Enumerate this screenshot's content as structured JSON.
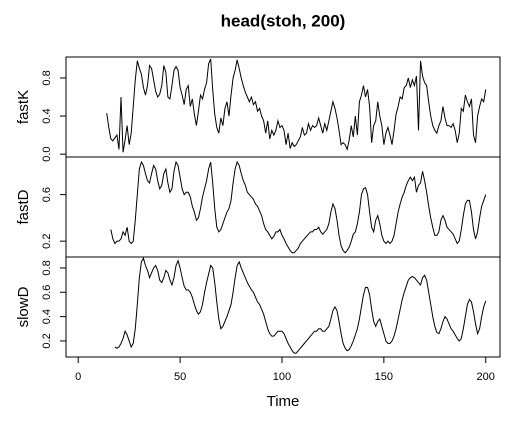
{
  "chart_data": {
    "type": "line",
    "title": "head(stoh, 200)",
    "xlabel": "Time",
    "color": "#000000",
    "x": [
      1,
      2,
      3,
      4,
      5,
      6,
      7,
      8,
      9,
      10,
      11,
      12,
      13,
      14,
      15,
      16,
      17,
      18,
      19,
      20,
      21,
      22,
      23,
      24,
      25,
      26,
      27,
      28,
      29,
      30,
      31,
      32,
      33,
      34,
      35,
      36,
      37,
      38,
      39,
      40,
      41,
      42,
      43,
      44,
      45,
      46,
      47,
      48,
      49,
      50,
      51,
      52,
      53,
      54,
      55,
      56,
      57,
      58,
      59,
      60,
      61,
      62,
      63,
      64,
      65,
      66,
      67,
      68,
      69,
      70,
      71,
      72,
      73,
      74,
      75,
      76,
      77,
      78,
      79,
      80,
      81,
      82,
      83,
      84,
      85,
      86,
      87,
      88,
      89,
      90,
      91,
      92,
      93,
      94,
      95,
      96,
      97,
      98,
      99,
      100,
      101,
      102,
      103,
      104,
      105,
      106,
      107,
      108,
      109,
      110,
      111,
      112,
      113,
      114,
      115,
      116,
      117,
      118,
      119,
      120,
      121,
      122,
      123,
      124,
      125,
      126,
      127,
      128,
      129,
      130,
      131,
      132,
      133,
      134,
      135,
      136,
      137,
      138,
      139,
      140,
      141,
      142,
      143,
      144,
      145,
      146,
      147,
      148,
      149,
      150,
      151,
      152,
      153,
      154,
      155,
      156,
      157,
      158,
      159,
      160,
      161,
      162,
      163,
      164,
      165,
      166,
      167,
      168,
      169,
      170,
      171,
      172,
      173,
      174,
      175,
      176,
      177,
      178,
      179,
      180,
      181,
      182,
      183,
      184,
      185,
      186,
      187,
      188,
      189,
      190,
      191,
      192,
      193,
      194,
      195,
      196,
      197,
      198,
      199,
      200
    ],
    "xlim": [
      -6,
      207
    ],
    "xticks": [
      0,
      50,
      100,
      150,
      200
    ],
    "series": [
      {
        "name": "fastK",
        "ylim": [
          -0.03,
          1.02
        ],
        "yticks": [
          {
            "value": 0,
            "label": "0.0"
          },
          0.4,
          0.8
        ],
        "values": [
          null,
          null,
          null,
          null,
          null,
          null,
          null,
          null,
          null,
          null,
          null,
          null,
          null,
          0.43,
          0.28,
          0.16,
          0.14,
          0.17,
          0.2,
          0.05,
          0.6,
          0.02,
          0.15,
          0.3,
          0.1,
          0.22,
          0.5,
          0.78,
          0.98,
          0.9,
          0.84,
          0.7,
          0.62,
          0.72,
          0.93,
          0.9,
          0.78,
          0.66,
          0.6,
          0.63,
          0.72,
          0.93,
          0.86,
          0.6,
          0.58,
          0.72,
          0.88,
          0.92,
          0.88,
          0.7,
          0.62,
          0.52,
          0.68,
          0.72,
          0.5,
          0.58,
          0.42,
          0.3,
          0.45,
          0.62,
          0.58,
          0.68,
          0.75,
          0.95,
          1.0,
          0.68,
          0.42,
          0.28,
          0.22,
          0.38,
          0.3,
          0.48,
          0.55,
          0.4,
          0.62,
          0.8,
          0.88,
          0.99,
          0.9,
          0.8,
          0.72,
          0.65,
          0.6,
          0.55,
          0.6,
          0.52,
          0.55,
          0.45,
          0.48,
          0.4,
          0.35,
          0.22,
          0.35,
          0.16,
          0.25,
          0.2,
          0.25,
          0.35,
          0.28,
          0.3,
          0.25,
          0.1,
          0.22,
          0.06,
          0.12,
          0.08,
          0.1,
          0.14,
          0.18,
          0.28,
          0.2,
          0.22,
          0.32,
          0.25,
          0.3,
          0.28,
          0.3,
          0.38,
          0.3,
          0.22,
          0.32,
          0.25,
          0.35,
          0.45,
          0.55,
          0.48,
          0.38,
          0.25,
          0.1,
          0.12,
          0.1,
          0.05,
          0.15,
          0.3,
          0.18,
          0.4,
          0.2,
          0.55,
          0.62,
          0.72,
          0.6,
          0.68,
          0.5,
          0.12,
          0.3,
          0.35,
          0.55,
          0.4,
          0.3,
          0.1,
          0.22,
          0.28,
          0.2,
          0.1,
          0.25,
          0.42,
          0.5,
          0.6,
          0.58,
          0.7,
          0.72,
          0.8,
          0.7,
          0.78,
          0.72,
          0.82,
          0.25,
          0.98,
          0.82,
          0.75,
          0.72,
          0.55,
          0.4,
          0.3,
          0.25,
          0.22,
          0.3,
          0.35,
          0.5,
          0.38,
          0.3,
          0.3,
          0.28,
          0.32,
          0.25,
          0.12,
          0.22,
          0.48,
          0.45,
          0.62,
          0.55,
          0.5,
          0.58,
          0.2,
          0.12,
          0.4,
          0.5,
          0.58,
          0.55,
          0.68
        ]
      },
      {
        "name": "fastD",
        "ylim": [
          0.064,
          0.923
        ],
        "yticks": [
          0.2,
          0.6
        ],
        "values": [
          null,
          null,
          null,
          null,
          null,
          null,
          null,
          null,
          null,
          null,
          null,
          null,
          null,
          null,
          null,
          0.3,
          0.22,
          0.18,
          0.2,
          0.2,
          0.22,
          0.28,
          0.25,
          0.32,
          0.2,
          0.18,
          0.2,
          0.38,
          0.6,
          0.82,
          0.88,
          0.85,
          0.78,
          0.72,
          0.7,
          0.78,
          0.85,
          0.82,
          0.72,
          0.65,
          0.68,
          0.78,
          0.82,
          0.7,
          0.62,
          0.65,
          0.8,
          0.88,
          0.85,
          0.75,
          0.65,
          0.6,
          0.62,
          0.62,
          0.58,
          0.5,
          0.45,
          0.38,
          0.4,
          0.48,
          0.58,
          0.65,
          0.72,
          0.82,
          0.88,
          0.7,
          0.48,
          0.32,
          0.28,
          0.3,
          0.35,
          0.4,
          0.45,
          0.48,
          0.55,
          0.7,
          0.82,
          0.88,
          0.85,
          0.78,
          0.72,
          0.68,
          0.62,
          0.6,
          0.58,
          0.56,
          0.52,
          0.5,
          0.46,
          0.42,
          0.35,
          0.3,
          0.28,
          0.25,
          0.22,
          0.24,
          0.28,
          0.28,
          0.3,
          0.25,
          0.22,
          0.18,
          0.15,
          0.12,
          0.1,
          0.1,
          0.12,
          0.14,
          0.18,
          0.2,
          0.22,
          0.24,
          0.26,
          0.28,
          0.28,
          0.3,
          0.3,
          0.32,
          0.28,
          0.26,
          0.28,
          0.3,
          0.35,
          0.45,
          0.52,
          0.48,
          0.38,
          0.25,
          0.16,
          0.12,
          0.1,
          0.12,
          0.15,
          0.2,
          0.26,
          0.28,
          0.35,
          0.45,
          0.6,
          0.65,
          0.66,
          0.6,
          0.45,
          0.32,
          0.28,
          0.38,
          0.42,
          0.35,
          0.25,
          0.2,
          0.18,
          0.2,
          0.18,
          0.2,
          0.25,
          0.35,
          0.45,
          0.52,
          0.58,
          0.62,
          0.68,
          0.72,
          0.75,
          0.72,
          0.75,
          0.62,
          0.68,
          0.7,
          0.8,
          0.72,
          0.62,
          0.5,
          0.4,
          0.32,
          0.25,
          0.25,
          0.28,
          0.38,
          0.42,
          0.38,
          0.32,
          0.3,
          0.28,
          0.26,
          0.22,
          0.18,
          0.2,
          0.3,
          0.42,
          0.52,
          0.55,
          0.55,
          0.45,
          0.3,
          0.22,
          0.28,
          0.4,
          0.5,
          0.55,
          0.6
        ]
      },
      {
        "name": "slowD",
        "ylim": [
          0.068,
          0.89
        ],
        "yticks": [
          0.2,
          0.4,
          0.6,
          0.8
        ],
        "values": [
          null,
          null,
          null,
          null,
          null,
          null,
          null,
          null,
          null,
          null,
          null,
          null,
          null,
          null,
          null,
          null,
          null,
          0.15,
          0.14,
          0.15,
          0.18,
          0.22,
          0.28,
          0.25,
          0.2,
          0.15,
          0.18,
          0.3,
          0.5,
          0.72,
          0.85,
          0.88,
          0.82,
          0.78,
          0.72,
          0.76,
          0.8,
          0.82,
          0.78,
          0.7,
          0.68,
          0.72,
          0.78,
          0.76,
          0.7,
          0.66,
          0.72,
          0.82,
          0.86,
          0.8,
          0.72,
          0.65,
          0.62,
          0.62,
          0.6,
          0.56,
          0.5,
          0.45,
          0.42,
          0.44,
          0.5,
          0.6,
          0.68,
          0.75,
          0.82,
          0.8,
          0.68,
          0.52,
          0.38,
          0.3,
          0.32,
          0.36,
          0.4,
          0.45,
          0.5,
          0.6,
          0.72,
          0.82,
          0.85,
          0.8,
          0.76,
          0.72,
          0.68,
          0.65,
          0.62,
          0.6,
          0.56,
          0.52,
          0.5,
          0.46,
          0.42,
          0.36,
          0.3,
          0.26,
          0.24,
          0.24,
          0.26,
          0.28,
          0.28,
          0.28,
          0.26,
          0.22,
          0.18,
          0.15,
          0.12,
          0.1,
          0.1,
          0.12,
          0.14,
          0.16,
          0.18,
          0.2,
          0.22,
          0.24,
          0.26,
          0.28,
          0.28,
          0.3,
          0.3,
          0.28,
          0.28,
          0.3,
          0.32,
          0.38,
          0.45,
          0.48,
          0.45,
          0.36,
          0.26,
          0.18,
          0.14,
          0.12,
          0.13,
          0.16,
          0.2,
          0.25,
          0.3,
          0.38,
          0.48,
          0.58,
          0.64,
          0.64,
          0.58,
          0.46,
          0.36,
          0.32,
          0.36,
          0.38,
          0.32,
          0.26,
          0.2,
          0.18,
          0.18,
          0.2,
          0.24,
          0.3,
          0.38,
          0.46,
          0.54,
          0.6,
          0.65,
          0.7,
          0.72,
          0.73,
          0.72,
          0.7,
          0.68,
          0.66,
          0.72,
          0.74,
          0.7,
          0.6,
          0.5,
          0.4,
          0.32,
          0.27,
          0.26,
          0.3,
          0.36,
          0.4,
          0.38,
          0.34,
          0.3,
          0.28,
          0.25,
          0.22,
          0.2,
          0.22,
          0.3,
          0.4,
          0.5,
          0.54,
          0.52,
          0.44,
          0.34,
          0.26,
          0.3,
          0.4,
          0.48,
          0.53
        ]
      }
    ]
  }
}
